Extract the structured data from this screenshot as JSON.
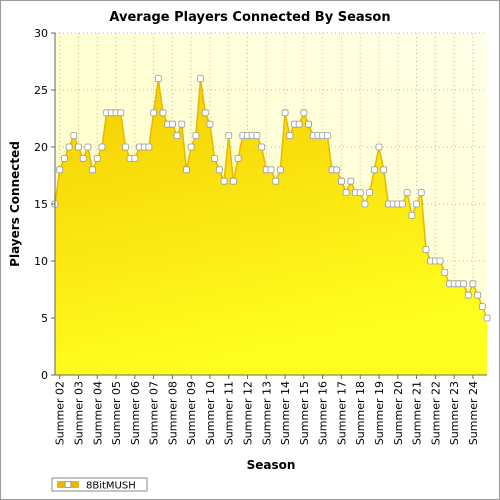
{
  "chart_data": {
    "type": "area",
    "title": "Average Players Connected By Season",
    "x_label": "Season",
    "y_label": "Players Connected",
    "categories": [
      null,
      "Summer 02",
      null,
      null,
      null,
      "Summer 03",
      null,
      null,
      null,
      "Summer 04",
      null,
      null,
      null,
      "Summer 05",
      null,
      null,
      null,
      "Summer 06",
      null,
      null,
      null,
      "Summer 07",
      null,
      null,
      null,
      "Summer 08",
      null,
      null,
      null,
      "Summer 09",
      null,
      null,
      null,
      "Summer 10",
      null,
      null,
      null,
      "Summer 11",
      null,
      null,
      null,
      "Summer 12",
      null,
      null,
      null,
      "Summer 13",
      null,
      null,
      null,
      "Summer 14",
      null,
      null,
      null,
      "Summer 15",
      null,
      null,
      null,
      "Summer 16",
      null,
      null,
      null,
      "Summer 17",
      null,
      null,
      null,
      "Summer 18",
      null,
      null,
      null,
      "Summer 19",
      null,
      null,
      null,
      "Summer 20",
      null,
      null,
      null,
      "Summer 21",
      null,
      null,
      null,
      "Summer 22",
      null,
      null,
      null,
      "Summer 23",
      null,
      null,
      null,
      "Summer 24",
      null,
      null,
      null
    ],
    "series": [
      {
        "name": "8BitMUSH",
        "color": "#e8b800",
        "values": [
          15,
          18,
          19,
          20,
          21,
          20,
          19,
          20,
          18,
          19,
          20,
          23,
          23,
          23,
          23,
          20,
          19,
          19,
          20,
          20,
          20,
          23,
          26,
          23,
          22,
          22,
          21,
          22,
          18,
          20,
          21,
          26,
          23,
          22,
          19,
          18,
          17,
          21,
          17,
          19,
          21,
          21,
          21,
          21,
          20,
          18,
          18,
          17,
          18,
          23,
          21,
          22,
          22,
          23,
          22,
          21,
          21,
          21,
          21,
          18,
          18,
          17,
          16,
          17,
          16,
          16,
          15,
          16,
          18,
          20,
          18,
          15,
          15,
          15,
          15,
          16,
          14,
          15,
          16,
          11,
          10,
          10,
          10,
          9,
          8,
          8,
          8,
          8,
          7,
          8,
          7,
          6,
          5
        ]
      }
    ],
    "ylim": [
      0,
      30
    ],
    "yticks": [
      0,
      5,
      10,
      15,
      20,
      25,
      30
    ],
    "grid": true,
    "legend": "bottom-left"
  }
}
